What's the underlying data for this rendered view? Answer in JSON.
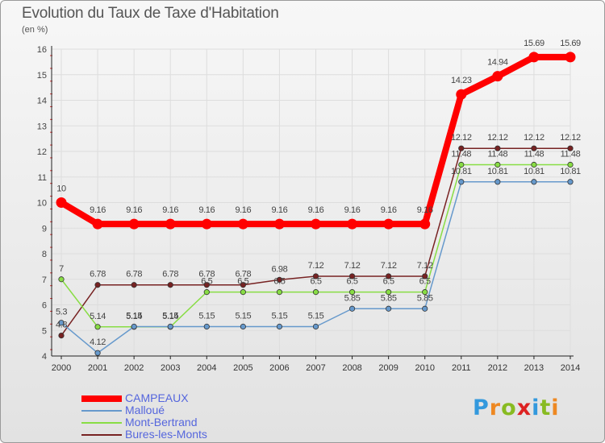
{
  "title": "Evolution du Taux de Taxe d'Habitation",
  "subtitle": "(en %)",
  "chart_data": {
    "type": "line",
    "title": "Evolution du Taux de Taxe d'Habitation",
    "ylabel": "(en %)",
    "xlabel": "",
    "x": [
      "2000",
      "2001",
      "2002",
      "2003",
      "2004",
      "2005",
      "2006",
      "2007",
      "2008",
      "2009",
      "2010",
      "2011",
      "2012",
      "2013",
      "2014"
    ],
    "ylim": [
      4,
      16
    ],
    "yticks": [
      4,
      5,
      6,
      7,
      8,
      9,
      10,
      11,
      12,
      13,
      14,
      15,
      16
    ],
    "grid": true,
    "legend_position": "bottom-left",
    "series": [
      {
        "name": "CAMPEAUX",
        "color": "#ff0000",
        "values": [
          10,
          9.16,
          9.16,
          9.16,
          9.16,
          9.16,
          9.16,
          9.16,
          9.16,
          9.16,
          9.16,
          14.23,
          14.94,
          15.69,
          15.69
        ],
        "labels": [
          "10",
          "9.16",
          "9.16",
          "9.16",
          "9.16",
          "9.16",
          "9.16",
          "9.16",
          "9.16",
          "9.16",
          "9.16",
          "14.23",
          "14.94",
          "15.69",
          "15.69"
        ]
      },
      {
        "name": "Malloué",
        "color": "#6699cc",
        "values": [
          5.3,
          4.12,
          5.15,
          5.15,
          5.15,
          5.15,
          5.15,
          5.15,
          5.85,
          5.85,
          5.85,
          10.81,
          10.81,
          10.81,
          10.81
        ],
        "labels": [
          "5.3",
          "4.12",
          "5.15",
          "5.15",
          "5.15",
          "5.15",
          "5.15",
          "5.15",
          "5.85",
          "5.85",
          "5.85",
          "10.81",
          "10.81",
          "10.81",
          "10.81"
        ]
      },
      {
        "name": "Mont-Bertrand",
        "color": "#88dd44",
        "values": [
          7,
          5.14,
          5.14,
          5.14,
          6.5,
          6.5,
          6.5,
          6.5,
          6.5,
          6.5,
          6.5,
          11.48,
          11.48,
          11.48,
          11.48
        ],
        "labels": [
          "7",
          "5.14",
          "5.14",
          "5.14",
          "6.5",
          "6.5",
          "6.5",
          "6.5",
          "6.5",
          "6.5",
          "6.5",
          "11.48",
          "11.48",
          "11.48",
          "11.48"
        ]
      },
      {
        "name": "Bures-les-Monts",
        "color": "#772222",
        "values": [
          4.8,
          6.78,
          6.78,
          6.78,
          6.78,
          6.78,
          6.98,
          7.12,
          7.12,
          7.12,
          7.12,
          12.12,
          12.12,
          12.12,
          12.12
        ],
        "labels": [
          "4.8",
          "6.78",
          "6.78",
          "6.78",
          "6.78",
          "6.78",
          "6.98",
          "7.12",
          "7.12",
          "7.12",
          "7.12",
          "12.12",
          "12.12",
          "12.12",
          "12.12"
        ]
      }
    ]
  },
  "logo": {
    "text": "Proxiti",
    "colors": [
      "#3399dd",
      "#ee8822",
      "#88bb22",
      "#dd2222",
      "#3399dd",
      "#88bb22",
      "#ee8822"
    ]
  }
}
